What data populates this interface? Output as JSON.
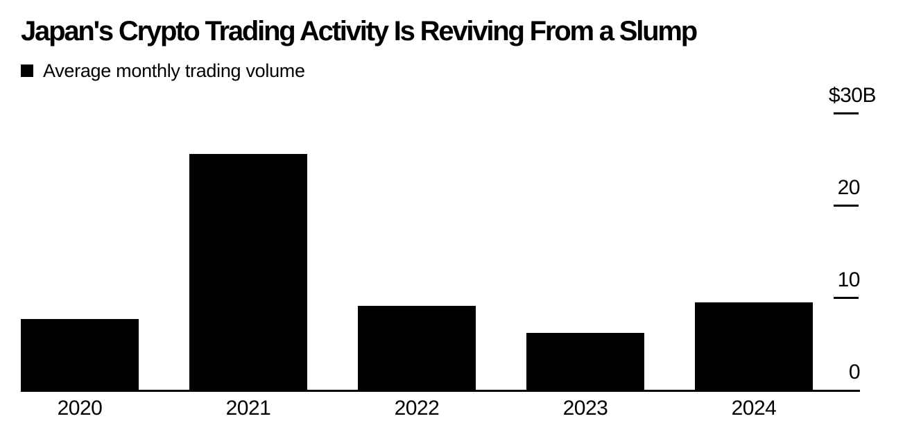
{
  "chart_data": {
    "type": "bar",
    "title": "Japan's Crypto Trading Activity Is Reviving From a Slump",
    "legend": "Average monthly trading volume",
    "categories": [
      "2020",
      "2021",
      "2022",
      "2023",
      "2024"
    ],
    "values": [
      7.7,
      25.6,
      9.1,
      6.2,
      9.5
    ],
    "ylim": [
      0,
      30
    ],
    "yticks": [
      {
        "value": 30,
        "label": "$30B"
      },
      {
        "value": 20,
        "label": "20"
      },
      {
        "value": 10,
        "label": "10"
      },
      {
        "value": 0,
        "label": "0"
      }
    ],
    "y_axis_side": "right",
    "legend_position": "top-left",
    "grid": false,
    "bar_color": "#000000",
    "text_color": "#000000",
    "background": "#ffffff"
  }
}
